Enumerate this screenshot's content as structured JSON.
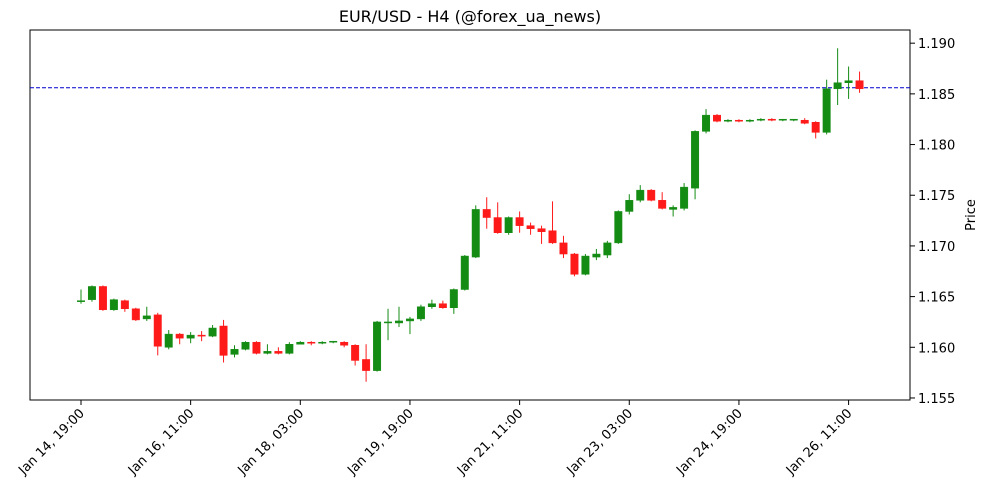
{
  "chart_data": {
    "type": "candlestick",
    "title": "EUR/USD - H4 (@forex_ua_news)",
    "y_label": "Price",
    "categories": [
      "Jan 14, 19:00",
      null,
      null,
      null,
      null,
      null,
      null,
      null,
      null,
      null,
      "Jan 16, 11:00",
      null,
      null,
      null,
      null,
      null,
      null,
      null,
      null,
      null,
      "Jan 18, 03:00",
      null,
      null,
      null,
      null,
      null,
      null,
      null,
      null,
      null,
      "Jan 19, 19:00",
      null,
      null,
      null,
      null,
      null,
      null,
      null,
      null,
      null,
      "Jan 21, 11:00",
      null,
      null,
      null,
      null,
      null,
      null,
      null,
      null,
      null,
      "Jan 23, 03:00",
      null,
      null,
      null,
      null,
      null,
      null,
      null,
      null,
      null,
      "Jan 24, 19:00",
      null,
      null,
      null,
      null,
      null,
      null,
      null,
      null,
      null,
      "Jan 26, 11:00",
      null
    ],
    "open": [
      1.1645,
      1.1647,
      1.166,
      1.1637,
      1.1646,
      1.1638,
      1.1628,
      1.1632,
      1.16,
      1.1613,
      1.1609,
      1.1612,
      1.1611,
      1.1621,
      1.1593,
      1.1598,
      1.1605,
      1.1594,
      1.1596,
      1.1594,
      1.1603,
      1.1605,
      1.1604,
      1.1605,
      1.1605,
      1.1602,
      1.1588,
      1.1577,
      1.1625,
      1.1624,
      1.1626,
      1.1628,
      1.164,
      1.1643,
      1.1639,
      1.1657,
      1.1689,
      1.1736,
      1.1728,
      1.1713,
      1.1728,
      1.172,
      1.1717,
      1.1715,
      1.1703,
      1.1692,
      1.1672,
      1.1689,
      1.1691,
      1.1703,
      1.1734,
      1.1745,
      1.1755,
      1.1745,
      1.1736,
      1.1737,
      1.1757,
      1.1813,
      1.1829,
      1.1823,
      1.1824,
      1.1823,
      1.1824,
      1.1825,
      1.1824,
      1.1824,
      1.1824,
      1.1822,
      1.1812,
      1.1855,
      1.1861,
      1.1863
    ],
    "high": [
      1.1657,
      1.1661,
      1.1661,
      1.1648,
      1.1647,
      1.1639,
      1.164,
      1.1634,
      1.1617,
      1.1614,
      1.1615,
      1.1616,
      1.1622,
      1.1627,
      1.1602,
      1.1606,
      1.1606,
      1.1603,
      1.16,
      1.1605,
      1.1606,
      1.1606,
      1.1606,
      1.1606,
      1.1606,
      1.1603,
      1.1603,
      1.1626,
      1.1638,
      1.164,
      1.163,
      1.1642,
      1.1647,
      1.1646,
      1.1658,
      1.1691,
      1.174,
      1.1748,
      1.1743,
      1.1729,
      1.1734,
      1.1723,
      1.172,
      1.1744,
      1.171,
      1.1693,
      1.1692,
      1.1697,
      1.1705,
      1.1735,
      1.1751,
      1.176,
      1.1756,
      1.1753,
      1.174,
      1.1762,
      1.1814,
      1.1835,
      1.183,
      1.1825,
      1.1825,
      1.1825,
      1.1826,
      1.1826,
      1.1825,
      1.1825,
      1.1826,
      1.1823,
      1.1864,
      1.1895,
      1.1877,
      1.1872
    ],
    "low": [
      1.1643,
      1.1645,
      1.1636,
      1.1636,
      1.1635,
      1.1626,
      1.1626,
      1.1592,
      1.1598,
      1.1603,
      1.1604,
      1.1606,
      1.161,
      1.1585,
      1.159,
      1.1597,
      1.1593,
      1.1593,
      1.1593,
      1.1593,
      1.1603,
      1.1602,
      1.1603,
      1.1604,
      1.16,
      1.1582,
      1.1566,
      1.1576,
      1.1607,
      1.162,
      1.1613,
      1.1626,
      1.1638,
      1.1638,
      1.1633,
      1.1656,
      1.1688,
      1.1717,
      1.1712,
      1.1711,
      1.1713,
      1.1711,
      1.1702,
      1.1702,
      1.1688,
      1.167,
      1.1671,
      1.1686,
      1.1688,
      1.1702,
      1.1731,
      1.1743,
      1.1744,
      1.1736,
      1.1729,
      1.1735,
      1.1746,
      1.1811,
      1.1822,
      1.1822,
      1.1822,
      1.1822,
      1.1823,
      1.1823,
      1.1823,
      1.1823,
      1.182,
      1.1806,
      1.181,
      1.1839,
      1.1845,
      1.1851
    ],
    "close": [
      1.1646,
      1.166,
      1.1637,
      1.1647,
      1.1638,
      1.1627,
      1.1631,
      1.1601,
      1.1613,
      1.1609,
      1.1612,
      1.1611,
      1.1619,
      1.1592,
      1.1598,
      1.1605,
      1.1594,
      1.1596,
      1.1594,
      1.1603,
      1.1605,
      1.1604,
      1.1605,
      1.1606,
      1.1602,
      1.1587,
      1.1577,
      1.1625,
      1.1625,
      1.1626,
      1.1628,
      1.164,
      1.1643,
      1.1639,
      1.1657,
      1.169,
      1.1736,
      1.1728,
      1.1713,
      1.1728,
      1.172,
      1.1717,
      1.1714,
      1.1703,
      1.1692,
      1.1672,
      1.169,
      1.1692,
      1.1703,
      1.1734,
      1.1745,
      1.1755,
      1.1745,
      1.1737,
      1.1738,
      1.1758,
      1.1813,
      1.1829,
      1.1823,
      1.1824,
      1.1823,
      1.1824,
      1.1825,
      1.1824,
      1.1825,
      1.1825,
      1.1821,
      1.1812,
      1.1855,
      1.1861,
      1.1863,
      1.1855
    ],
    "up_color": "#148c14",
    "down_color": "#ff1a1a",
    "hlines": [
      {
        "value": 1.1856,
        "color": "#0000cc",
        "style": "dashed"
      }
    ],
    "ylim": [
      1.1548,
      1.1913
    ],
    "yticks": [
      1.155,
      {
        "value": 1.16,
        "label": "1.160"
      },
      1.165,
      {
        "value": 1.17,
        "label": "1.170"
      },
      1.175,
      {
        "value": 1.18,
        "label": "1.180"
      },
      1.185,
      {
        "value": 1.19,
        "label": "1.190"
      }
    ],
    "grid": false
  }
}
